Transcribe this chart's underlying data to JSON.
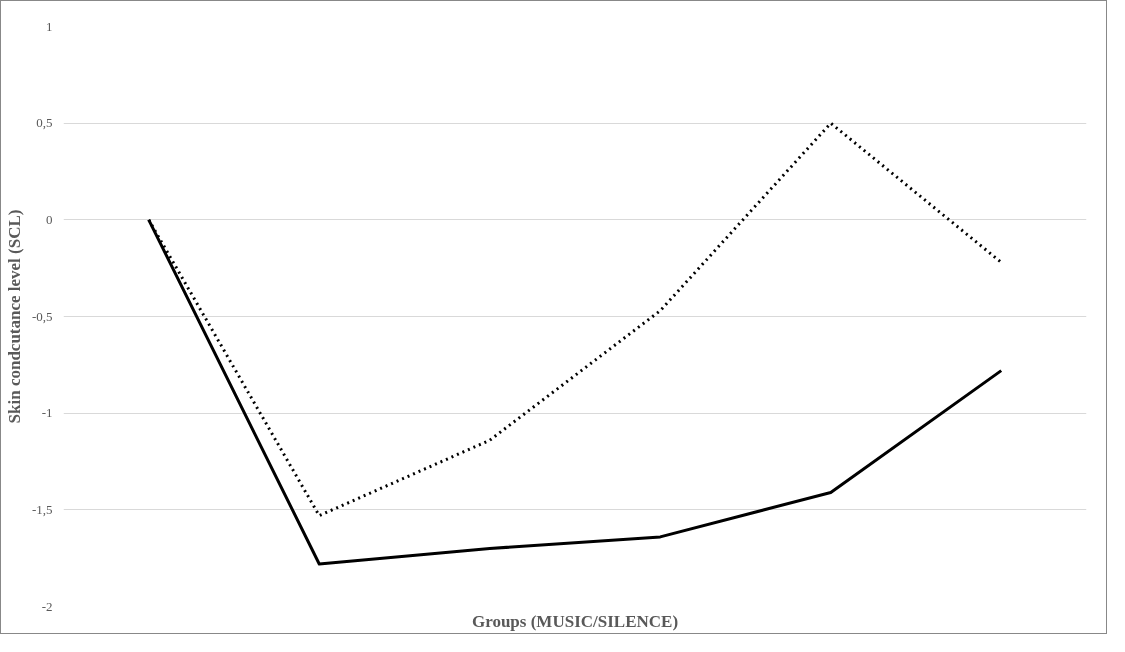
{
  "chart_data": {
    "type": "line",
    "xlabel": "Groups (MUSIC/SILENCE)",
    "ylabel": "Skin condcutance level (SCL)",
    "categories": [
      null,
      null,
      null,
      null,
      null,
      null
    ],
    "series": [
      {
        "color": "#000000",
        "line_style": "solid",
        "values": [
          0,
          -1.78,
          -1.7,
          -1.64,
          -1.41,
          -0.78
        ]
      },
      {
        "color": "#000000",
        "line_style": "dotted",
        "values": [
          0,
          -1.53,
          -1.14,
          -0.47,
          0.5,
          -0.22
        ]
      }
    ],
    "ylim": [
      -2,
      1
    ],
    "yticks": [
      {
        "value": -2,
        "label": "-2"
      },
      {
        "value": -1.5,
        "label": "-1,5"
      },
      {
        "value": -1,
        "label": "-1"
      },
      {
        "value": -0.5,
        "label": "-0,5"
      },
      {
        "value": 0,
        "label": "0"
      },
      {
        "value": 0.5,
        "label": "0,5"
      },
      {
        "value": 1,
        "label": "1"
      }
    ],
    "grid": "y",
    "marker": "none",
    "tick_labels": "y"
  }
}
